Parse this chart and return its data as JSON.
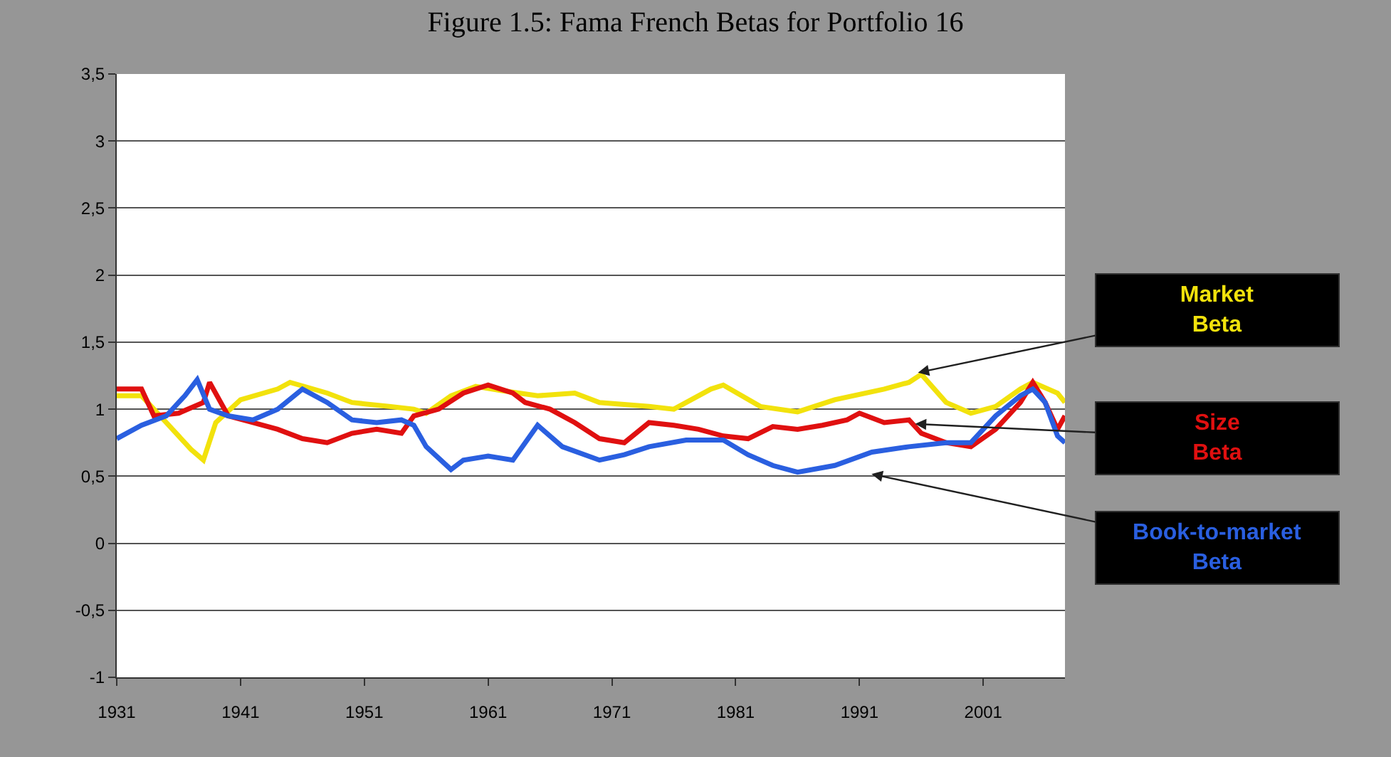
{
  "chart_data": {
    "type": "line",
    "title": "Figure 1.5: Fama French Betas for Portfolio 16",
    "xlim": [
      1931,
      2007.6
    ],
    "xticks": [
      1931,
      1941,
      1951,
      1961,
      1971,
      1981,
      1991,
      2001
    ],
    "ylim": [
      -1,
      3.5
    ],
    "yticks": [
      {
        "value": -1,
        "label": "-1"
      },
      {
        "value": -0.5,
        "label": "-0,5"
      },
      0,
      {
        "value": 0.5,
        "label": "0,5"
      },
      1,
      {
        "value": 1.5,
        "label": "1,5"
      },
      2,
      {
        "value": 2.5,
        "label": "2,5"
      },
      3,
      {
        "value": 3.5,
        "label": "3,5"
      }
    ],
    "grid": "y",
    "marker": "none",
    "line_style": "solid",
    "series": [
      {
        "color": "#f2e20c",
        "x": [
          1931,
          1933,
          1935,
          1937,
          1938,
          1939,
          1941,
          1944,
          1945,
          1948,
          1950,
          1953,
          1955,
          1956,
          1958,
          1960,
          1962,
          1965,
          1968,
          1970,
          1974,
          1976,
          1979,
          1980,
          1983,
          1986,
          1989,
          1993,
          1995,
          1996,
          1998,
          2000,
          2002,
          2004,
          2005,
          2007,
          2007.6
        ],
        "values": [
          1.1,
          1.1,
          0.9,
          0.7,
          0.62,
          0.9,
          1.07,
          1.15,
          1.2,
          1.12,
          1.05,
          1.02,
          1.0,
          0.97,
          1.1,
          1.17,
          1.14,
          1.1,
          1.12,
          1.05,
          1.02,
          1.0,
          1.15,
          1.18,
          1.02,
          0.98,
          1.07,
          1.15,
          1.2,
          1.26,
          1.05,
          0.97,
          1.02,
          1.15,
          1.2,
          1.12,
          1.05
        ]
      },
      {
        "color": "#e01010",
        "x": [
          1931,
          1933,
          1934,
          1936,
          1938,
          1938.5,
          1940,
          1942,
          1944,
          1946,
          1948,
          1950,
          1952,
          1954,
          1955,
          1957,
          1959,
          1961,
          1963,
          1964,
          1966,
          1968,
          1970,
          1972,
          1974,
          1976,
          1978,
          1980,
          1982,
          1984,
          1986,
          1988,
          1990,
          1991,
          1993,
          1995,
          1996,
          1998,
          2000,
          2002,
          2004,
          2005,
          2006,
          2007,
          2007.6
        ],
        "values": [
          1.15,
          1.15,
          0.95,
          0.97,
          1.05,
          1.2,
          0.95,
          0.9,
          0.85,
          0.78,
          0.75,
          0.82,
          0.85,
          0.82,
          0.95,
          1.0,
          1.12,
          1.18,
          1.12,
          1.05,
          1.0,
          0.9,
          0.78,
          0.75,
          0.9,
          0.88,
          0.85,
          0.8,
          0.78,
          0.87,
          0.85,
          0.88,
          0.92,
          0.97,
          0.9,
          0.92,
          0.82,
          0.75,
          0.72,
          0.85,
          1.05,
          1.2,
          1.05,
          0.85,
          0.95
        ]
      },
      {
        "color": "#2a5fe0",
        "x": [
          1931,
          1933,
          1935,
          1936.5,
          1937.5,
          1938.5,
          1940,
          1942,
          1944,
          1946,
          1948,
          1950,
          1952,
          1954,
          1955,
          1956,
          1958,
          1959,
          1961,
          1963,
          1965,
          1967,
          1970,
          1972,
          1974,
          1977,
          1980,
          1982,
          1984,
          1986,
          1989,
          1992,
          1995,
          1998,
          2000,
          2002,
          2004,
          2005,
          2006,
          2007,
          2007.6
        ],
        "values": [
          0.78,
          0.88,
          0.95,
          1.1,
          1.22,
          1.0,
          0.95,
          0.92,
          1.0,
          1.15,
          1.05,
          0.92,
          0.9,
          0.92,
          0.88,
          0.72,
          0.55,
          0.62,
          0.65,
          0.62,
          0.88,
          0.72,
          0.62,
          0.66,
          0.72,
          0.77,
          0.77,
          0.66,
          0.58,
          0.53,
          0.58,
          0.68,
          0.72,
          0.75,
          0.75,
          0.95,
          1.1,
          1.15,
          1.05,
          0.8,
          0.75
        ]
      }
    ],
    "annotations": [
      "Market\nBeta",
      "Size\nBeta",
      "Book-to-market\nBeta"
    ]
  }
}
